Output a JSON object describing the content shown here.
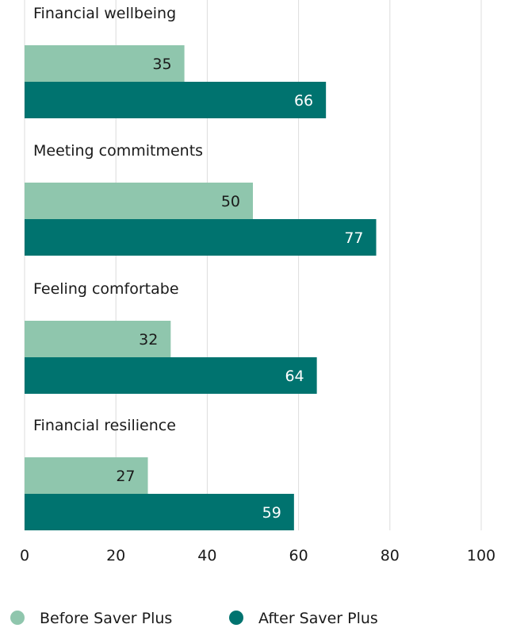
{
  "chart_data": {
    "type": "bar",
    "orientation": "horizontal",
    "categories": [
      "Financial wellbeing",
      "Meeting commitments",
      "Feeling comfortabe",
      "Financial resilience"
    ],
    "series": [
      {
        "name": "Before Saver Plus",
        "values": [
          35,
          50,
          32,
          27
        ],
        "color": "#8fc6ad"
      },
      {
        "name": "After Saver Plus",
        "values": [
          66,
          77,
          64,
          59
        ],
        "color": "#00736f"
      }
    ],
    "xlim": [
      0,
      100
    ],
    "xticks": [
      "0",
      "20",
      "40",
      "60",
      "80",
      "100"
    ],
    "grid": true,
    "legend_position": "bottom-left",
    "colors": {
      "gridline": "#dcdcdc",
      "axis_text": "#1a1a1a",
      "label_dark": "#1a1a1a",
      "label_light": "#ffffff"
    }
  }
}
